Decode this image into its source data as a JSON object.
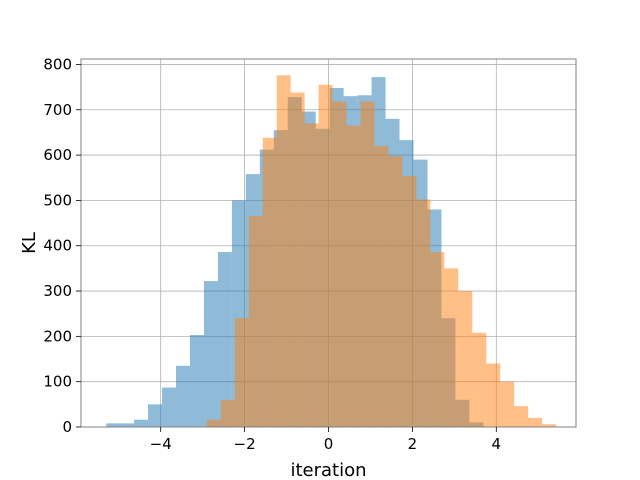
{
  "chart_data": {
    "type": "bar",
    "title": "",
    "xlabel": "iteration",
    "ylabel": "KL",
    "xlim": [
      -5.9,
      5.9
    ],
    "ylim": [
      0,
      812
    ],
    "xticks": [
      -4,
      -2,
      0,
      2,
      4
    ],
    "xtick_labels": [
      "−4",
      "−2",
      "0",
      "2",
      "4"
    ],
    "yticks": [
      0,
      100,
      200,
      300,
      400,
      500,
      600,
      700,
      800
    ],
    "ytick_labels": [
      "0",
      "100",
      "200",
      "300",
      "400",
      "500",
      "600",
      "700",
      "800"
    ],
    "grid": true,
    "series": [
      {
        "color": "#1f77b4",
        "alpha": 0.5,
        "bins_start": -5.3,
        "bin_width": 0.333,
        "values": [
          8,
          8,
          16,
          50,
          87,
          135,
          203,
          322,
          386,
          500,
          558,
          612,
          655,
          728,
          696,
          658,
          748,
          730,
          732,
          772,
          680,
          633,
          590,
          480,
          240,
          60,
          10
        ]
      },
      {
        "color": "#ff7f0e",
        "alpha": 0.5,
        "bins_start": -2.9,
        "bin_width": 0.333,
        "values": [
          16,
          60,
          240,
          466,
          638,
          776,
          738,
          670,
          755,
          718,
          665,
          718,
          620,
          598,
          554,
          502,
          386,
          350,
          300,
          208,
          140,
          100,
          46,
          20,
          6
        ]
      }
    ]
  }
}
